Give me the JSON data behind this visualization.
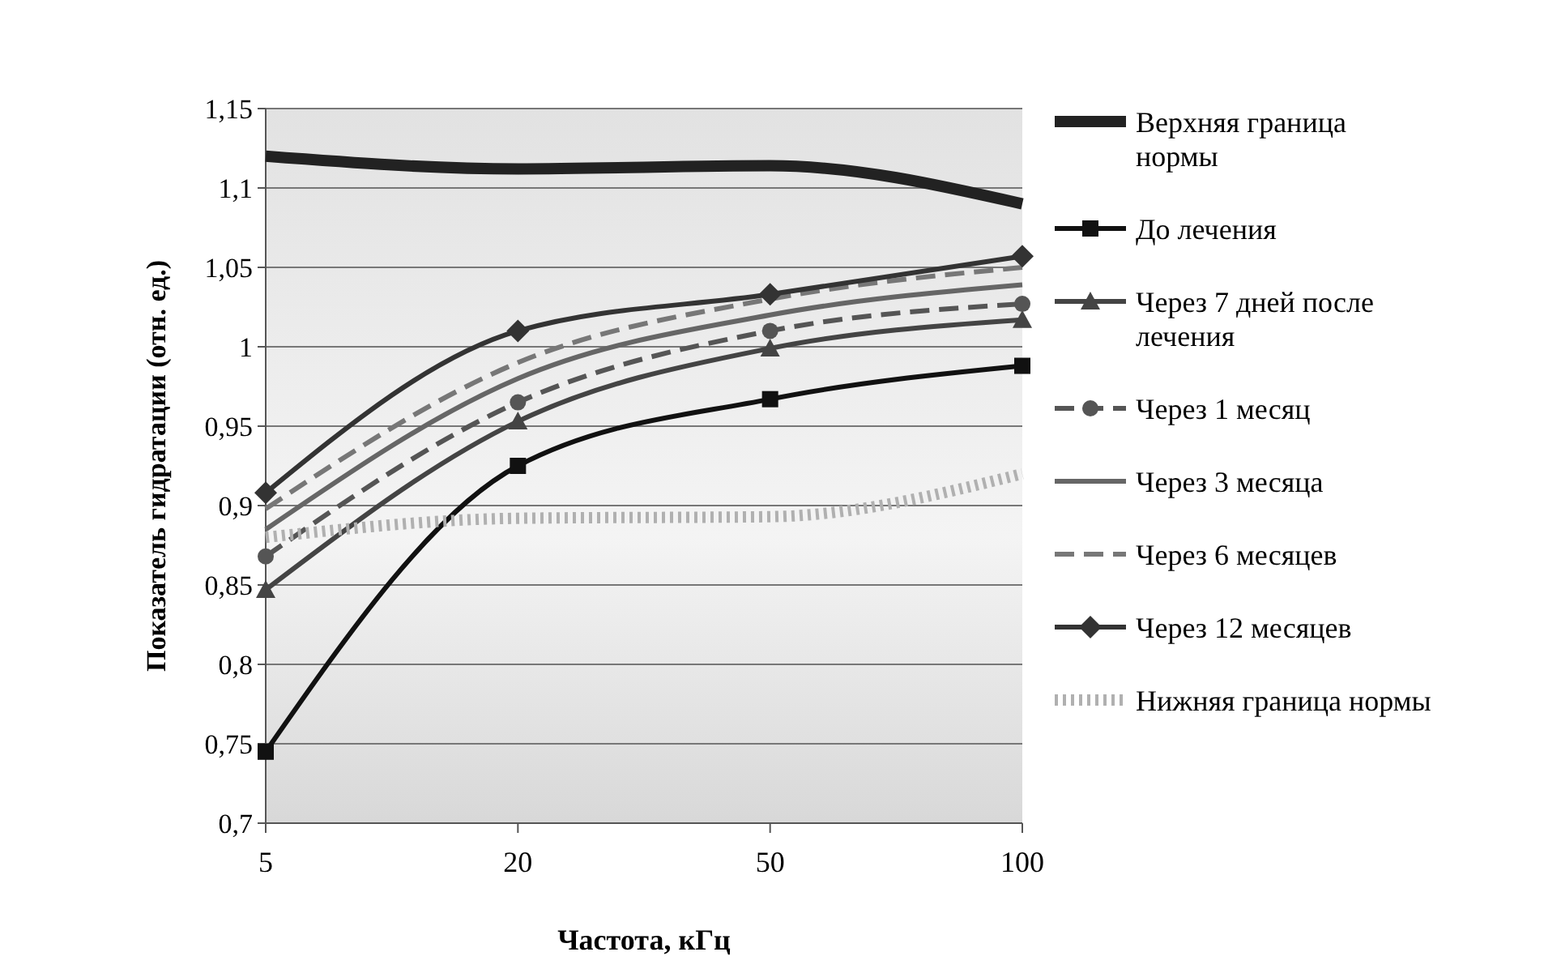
{
  "chart_data": {
    "type": "line",
    "xlabel": "Частота, кГц",
    "ylabel": "Показатель гидратации (отн. ед.)",
    "categories": [
      "5",
      "20",
      "50",
      "100"
    ],
    "ylim": [
      0.7,
      1.15
    ],
    "yticks": [
      {
        "value": 0.7,
        "label": "0,7"
      },
      {
        "value": 0.75,
        "label": "0,75"
      },
      {
        "value": 0.8,
        "label": "0,8"
      },
      {
        "value": 0.85,
        "label": "0,85"
      },
      {
        "value": 0.9,
        "label": "0,9"
      },
      {
        "value": 0.95,
        "label": "0,95"
      },
      {
        "value": 1,
        "label": "1"
      },
      {
        "value": 1.05,
        "label": "1,05"
      },
      {
        "value": 1.1,
        "label": "1,1"
      },
      {
        "value": 1.15,
        "label": "1,15"
      }
    ],
    "grid": "y",
    "legend": "right",
    "series": [
      {
        "name": "Верхняя граница нормы",
        "color": "#222222",
        "values": [
          1.12,
          1.112,
          1.114,
          1.09
        ],
        "marker": "none",
        "line_style": "solid"
      },
      {
        "name": "До лечения",
        "color": "#111111",
        "values": [
          0.745,
          0.925,
          0.967,
          0.988
        ],
        "marker": "square",
        "line_style": "solid"
      },
      {
        "name": "Через 7 дней после лечения",
        "color": "#444444",
        "values": [
          0.847,
          0.953,
          0.999,
          1.017
        ],
        "marker": "triangle",
        "line_style": "solid"
      },
      {
        "name": "Через 1 месяц",
        "color": "#555555",
        "values": [
          0.868,
          0.965,
          1.01,
          1.027
        ],
        "marker": "circle",
        "line_style": "dashed"
      },
      {
        "name": "Через 3 месяца",
        "color": "#666666",
        "values": [
          0.885,
          0.98,
          1.02,
          1.039
        ],
        "marker": "none",
        "line_style": "solid"
      },
      {
        "name": "Через 6 месяцев",
        "color": "#777777",
        "values": [
          0.898,
          0.99,
          1.03,
          1.05
        ],
        "marker": "none",
        "line_style": "dashed"
      },
      {
        "name": "Через 12 месяцев",
        "color": "#333333",
        "values": [
          0.908,
          1.01,
          1.033,
          1.057
        ],
        "marker": "diamond",
        "line_style": "solid"
      },
      {
        "name": "Нижняя граница нормы",
        "color": "#b0b0b0",
        "values": [
          0.88,
          0.892,
          0.893,
          0.92
        ],
        "marker": "none",
        "line_style": "dotted"
      }
    ]
  }
}
